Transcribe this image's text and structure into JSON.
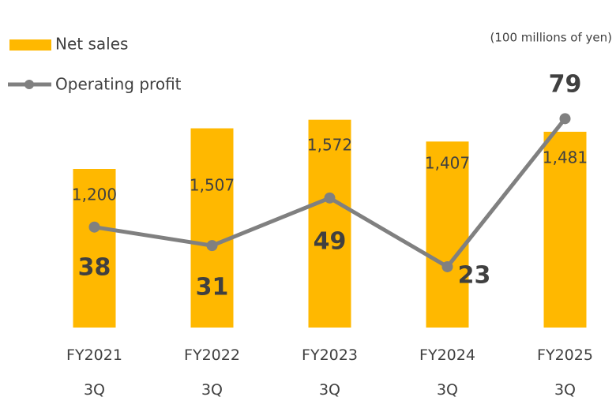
{
  "chart_data": {
    "type": "bar_line",
    "subtitle": "(100 millions of yen)",
    "categories": [
      "FY2021 3Q",
      "FY2022 3Q",
      "FY2023 3Q",
      "FY2024 3Q",
      "FY2025 3Q"
    ],
    "series": [
      {
        "name": "Net sales",
        "type": "bar",
        "color": "#ffb800",
        "values": [
          1200,
          1507,
          1572,
          1407,
          1481
        ],
        "value_labels": [
          "1,200",
          "1,507",
          "1,572",
          "1,407",
          "1,481"
        ]
      },
      {
        "name": "Operating profit",
        "type": "line",
        "axis": "y2",
        "color": "#808080",
        "values": [
          38,
          31,
          49,
          23,
          79
        ]
      }
    ],
    "ylim": [
      0,
      2000
    ],
    "y2lim": [
      0,
      100
    ]
  }
}
